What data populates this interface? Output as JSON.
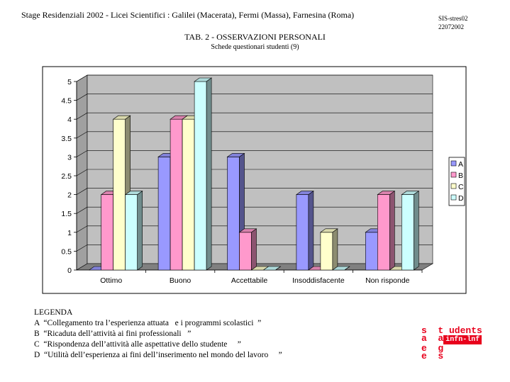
{
  "header": {
    "title": "Stage Residenziali 2002 - Licei Scientifici  : Galilei  (Macerata), Fermi (Massa), Farnesina  (Roma)",
    "code_line1": "SIS-stres02",
    "code_line2": "22072002"
  },
  "table": {
    "title": "TAB. 2 - OSSERVAZIONI PERSONALI",
    "subtitle": "Schede questionari studenti  (9)"
  },
  "chart_data": {
    "type": "bar",
    "style": "3d-clustered",
    "categories": [
      "Ottimo",
      "Buono",
      "Accettabile",
      "Insoddisfacente",
      "Non risponde"
    ],
    "series": [
      {
        "name": "A",
        "values": [
          0,
          3,
          3,
          2,
          1
        ],
        "color": "#9999ff"
      },
      {
        "name": "B",
        "values": [
          2,
          4,
          1,
          0,
          2
        ],
        "color": "#ff99cc"
      },
      {
        "name": "C",
        "values": [
          4,
          4,
          0,
          1,
          0
        ],
        "color": "#ffffcc"
      },
      {
        "name": "D",
        "values": [
          2,
          5,
          0,
          0,
          2
        ],
        "color": "#ccffff"
      }
    ],
    "yticks": [
      "0",
      "0.5",
      "1",
      "1.5",
      "2",
      "2.5",
      "3",
      "3.5",
      "4",
      "4.5",
      "5"
    ],
    "ylim": [
      0,
      5
    ],
    "grid": true,
    "legend_position": "right",
    "wall_color": "#c0c0c0"
  },
  "legend": {
    "heading": "LEGENDA",
    "items": [
      "A  “Collegamento tra l’esperienza attuata   e i programmi scolastici  ”",
      "B  “Ricaduta dell’attività ai fini professionali   ”",
      "C  “Rispondenza dell’attività alle aspettative dello studente     ”",
      "D  “Utilità dell’esperienza ai fini dell’inserimento nel mondo del lavoro     ”"
    ]
  },
  "logo": {
    "line1": "s  t udents",
    "line2": "a  a",
    "line3": "e  g",
    "line4": "e  s",
    "badge": "infn-lnf"
  }
}
